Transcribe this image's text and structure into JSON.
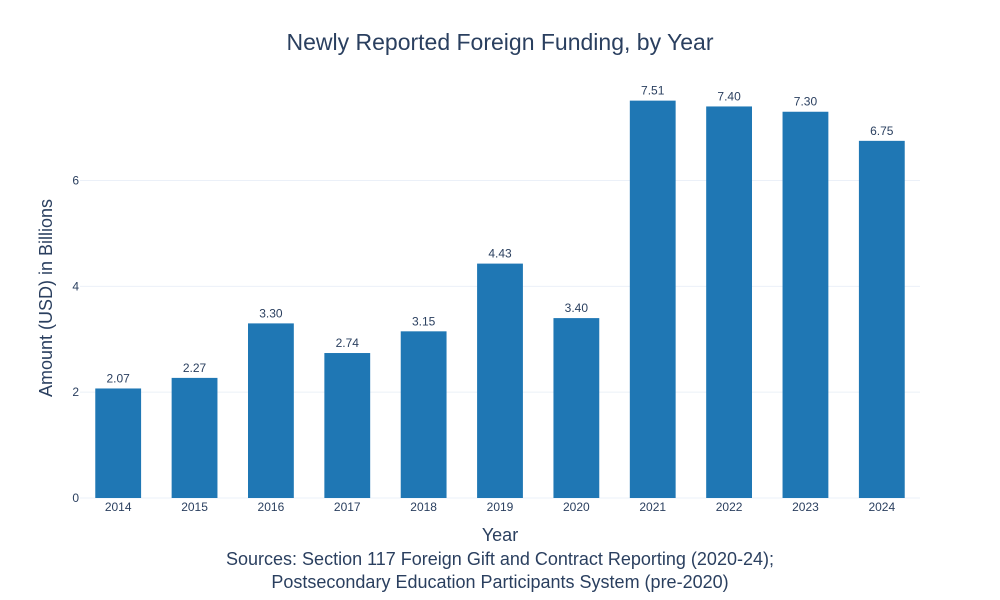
{
  "chart_data": {
    "type": "bar",
    "title": "Newly Reported Foreign Funding, by Year",
    "xlabel": "Year",
    "ylabel": "Amount (USD) in Billions",
    "categories": [
      "2014",
      "2015",
      "2016",
      "2017",
      "2018",
      "2019",
      "2020",
      "2021",
      "2022",
      "2023",
      "2024"
    ],
    "values": [
      2.07,
      2.27,
      3.3,
      2.74,
      3.15,
      4.43,
      3.4,
      7.51,
      7.4,
      7.3,
      6.75
    ],
    "data_labels": [
      "2.07",
      "2.27",
      "3.30",
      "2.74",
      "3.15",
      "4.43",
      "3.40",
      "7.51",
      "7.40",
      "7.30",
      "6.75"
    ],
    "ylim": [
      0,
      7.9
    ],
    "yticks": [
      0,
      2,
      4,
      6
    ],
    "grid": true,
    "legend": "none",
    "color": "#1f77b4",
    "source_lines": [
      "Sources: Section 117 Foreign Gift and Contract Reporting (2020-24);",
      "Postsecondary Education Participants System (pre-2020)"
    ]
  }
}
